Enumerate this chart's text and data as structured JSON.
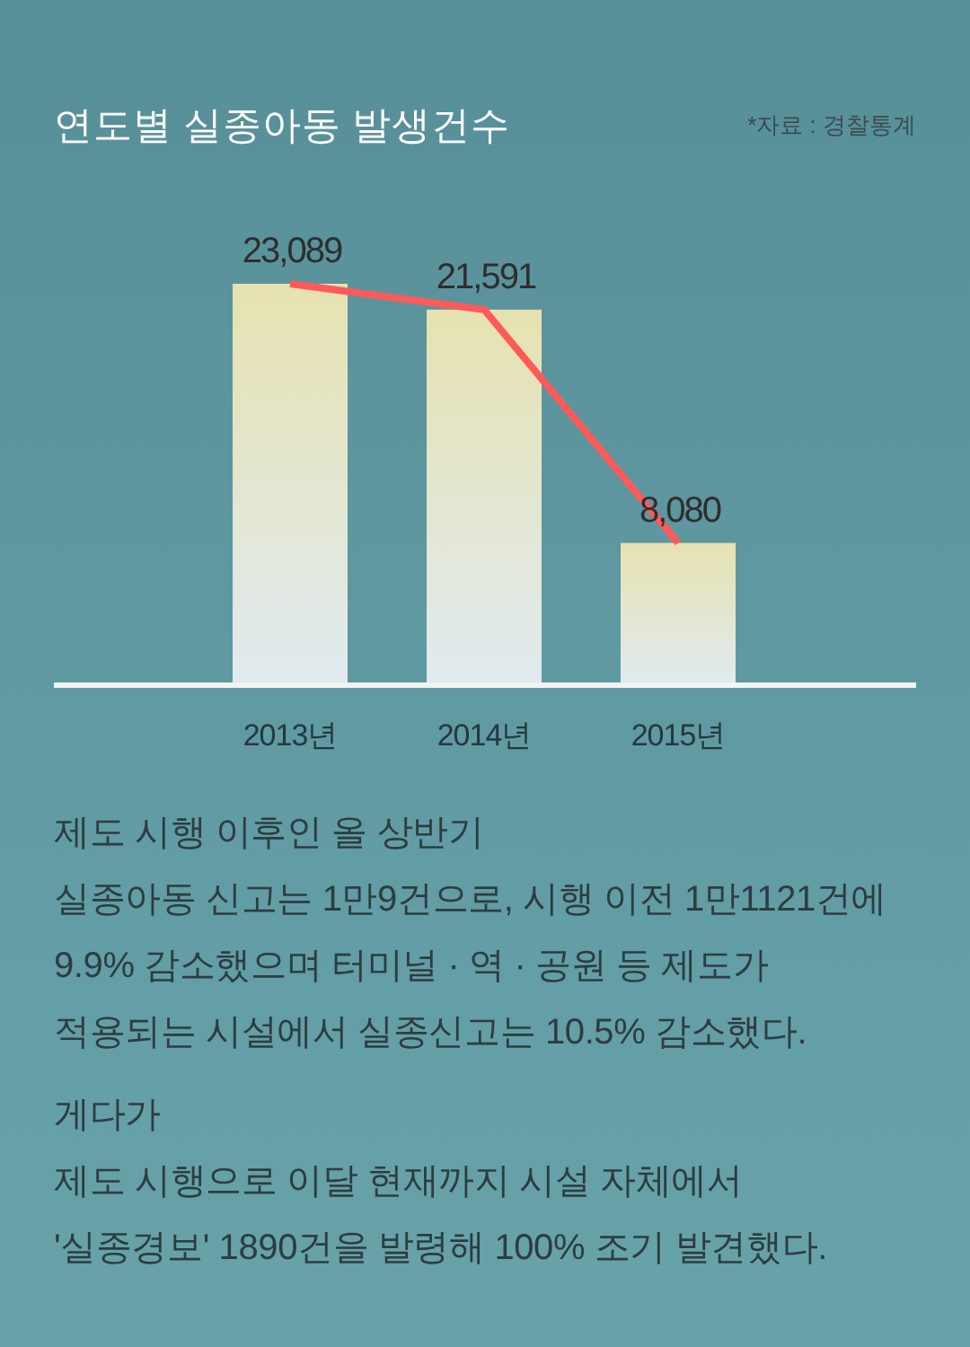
{
  "chart_data": {
    "type": "bar",
    "title": "연도별 실종아동 발생건수",
    "categories": [
      "2013년",
      "2014년",
      "2015년"
    ],
    "series": [
      {
        "color": "#e6e2b0",
        "values": [
          23089,
          21591,
          8080
        ],
        "value_labels": [
          "23,089",
          "21,591",
          "8,080"
        ]
      },
      {
        "type": "line",
        "color": "#ff5a5a",
        "values": [
          23089,
          21591,
          8080
        ]
      }
    ],
    "annotations": [
      "*자료 : 경찰통계",
      "제도 시행 이후인 올 상반기\n실종아동 신고는 1만9건으로, 시행 이전 1만1121건에\n9.9% 감소했으며 터미널 · 역 · 공원 등 제도가\n적용되는 시설에서 실종신고는 10.5% 감소했다.",
      "게다가\n제도 시행으로 이달 현재까지 시설 자체에서\n'실종경보' 1890건을 발령해 100% 조기 발견했다."
    ]
  }
}
